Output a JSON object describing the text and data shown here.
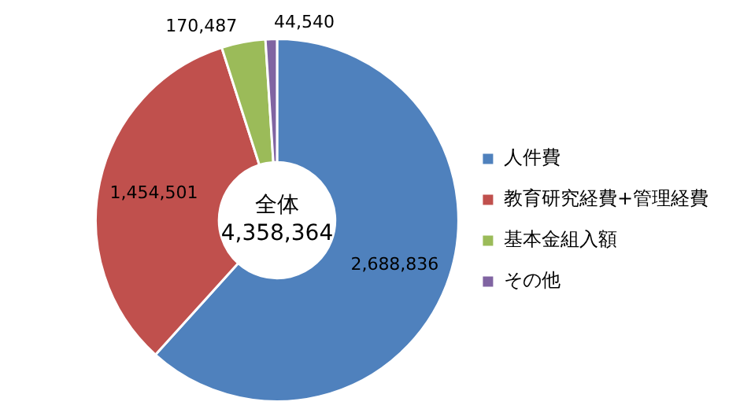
{
  "chart_data": {
    "type": "donut",
    "categories": [
      "人件費",
      "教育研究経費+管理経費",
      "基本金組入額",
      "その他"
    ],
    "values": [
      2688836,
      1454501,
      170487,
      44540
    ],
    "colors": [
      "#4f81bd",
      "#c0504d",
      "#9bbb59",
      "#8064a2"
    ],
    "value_labels": [
      "2,688,836",
      "1,454,501",
      "170,487",
      "44,540"
    ],
    "annotations": [
      "全体",
      "4,358,364"
    ],
    "legend": "right"
  }
}
